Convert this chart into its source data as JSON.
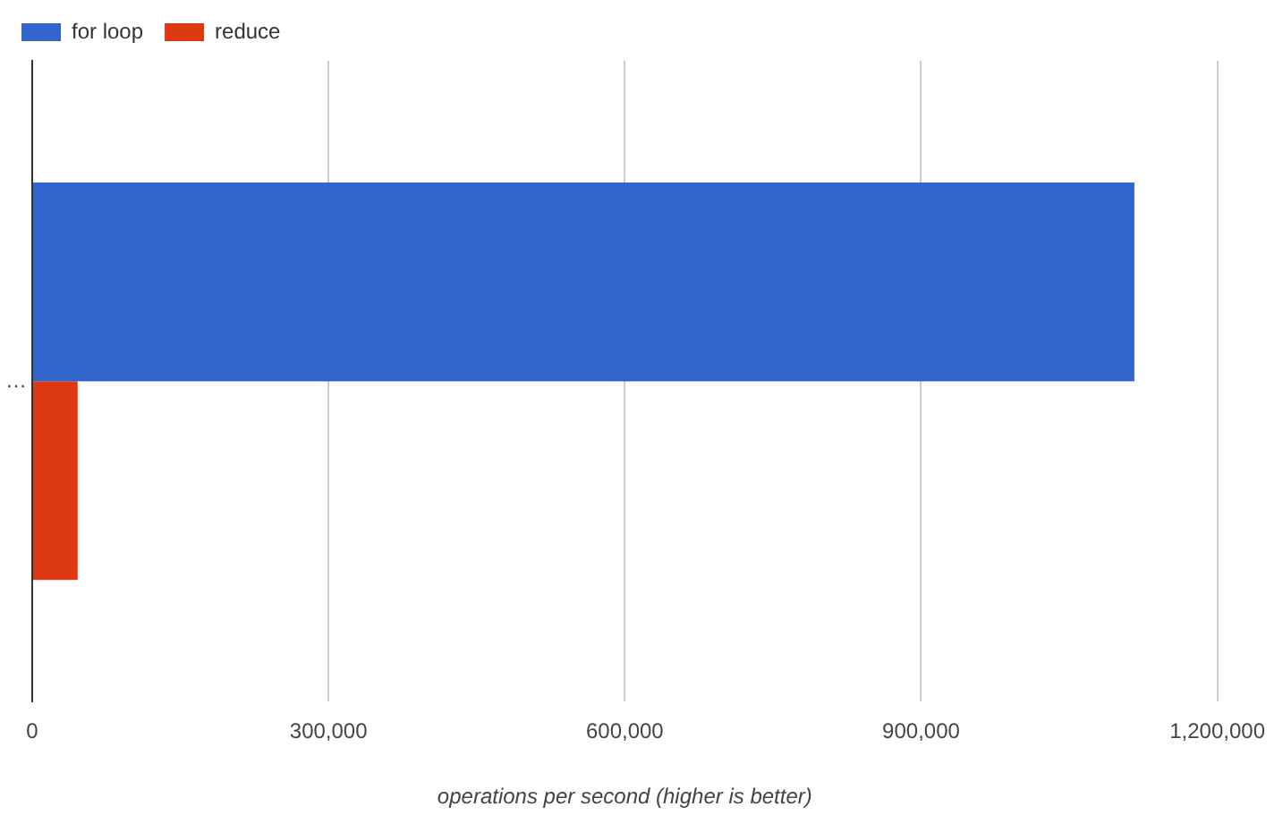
{
  "chart_data": {
    "type": "bar",
    "orientation": "horizontal",
    "xlabel": "operations per second (higher is better)",
    "categories": [
      "…"
    ],
    "series": [
      {
        "name": "for loop",
        "color": "#3366cc",
        "values": [
          1116000
        ]
      },
      {
        "name": "reduce",
        "color": "#dc3912",
        "values": [
          46000
        ]
      }
    ],
    "xlim": [
      0,
      1200000
    ],
    "xticks": [
      {
        "value": 0,
        "label": "0"
      },
      {
        "value": 300000,
        "label": "300,000"
      },
      {
        "value": 600000,
        "label": "600,000"
      },
      {
        "value": 900000,
        "label": "900,000"
      },
      {
        "value": 1200000,
        "label": "1,200,000"
      }
    ],
    "grid": "x",
    "legend": "top left"
  }
}
